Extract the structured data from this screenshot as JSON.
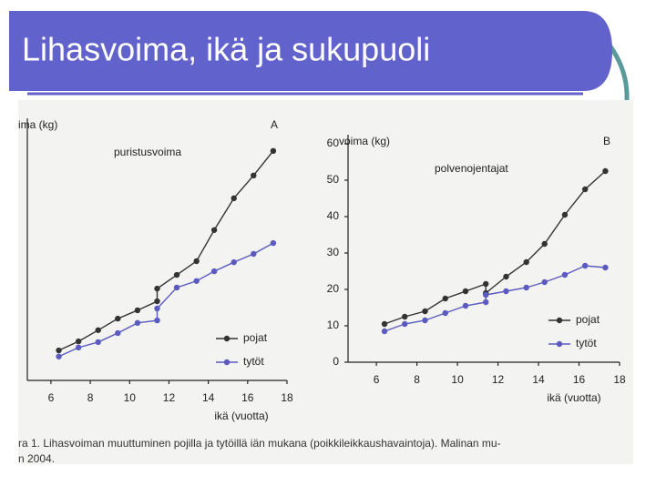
{
  "slide": {
    "title": "Lihasvoima, ikä ja sukupuoli",
    "caption": [
      "ra 1. Lihasvoiman muuttuminen pojilla ja tytöillä iän mukana (poikkileikkaushavaintoja). Malinan mu-",
      "n 2004."
    ]
  },
  "chart_data": [
    {
      "type": "line",
      "panel": "A",
      "annotation": "puristusvoima",
      "y_label": "ima (kg)",
      "x_label": "ikä (vuotta)",
      "x": [
        6.4,
        7.4,
        8.4,
        9.4,
        10.4,
        11.4,
        11.4,
        12.4,
        13.4,
        14.3,
        15.3,
        16.3,
        17.3
      ],
      "xlim": [
        4.8,
        18
      ],
      "xticks": [
        6,
        8,
        10,
        12,
        14,
        16,
        18
      ],
      "ylim": [
        0,
        70
      ],
      "legend": "lower right",
      "series": [
        {
          "name": "pojat",
          "color": "#333333",
          "values": [
            8.3,
            10.8,
            13.9,
            17.1,
            19.4,
            21.9,
            25.4,
            29.2,
            33,
            41.6,
            50.4,
            56.7,
            63.5
          ]
        },
        {
          "name": "tytöt",
          "color": "#5a5ac0",
          "values": [
            6.6,
            9.1,
            10.6,
            13.1,
            15.9,
            16.6,
            19.9,
            25.7,
            27.5,
            30.2,
            32.7,
            35,
            38
          ]
        }
      ]
    },
    {
      "type": "line",
      "panel": "B",
      "annotation": "polvenojentajat",
      "y_label": "voima (kg)",
      "x_label": "ikä (vuotta)",
      "x": [
        6.4,
        7.4,
        8.4,
        9.4,
        10.4,
        11.4,
        11.4,
        12.4,
        13.4,
        14.3,
        15.3,
        16.3,
        17.3
      ],
      "xlim": [
        4.6,
        18
      ],
      "xticks": [
        6,
        8,
        10,
        12,
        14,
        16,
        18
      ],
      "ylim": [
        0,
        60
      ],
      "yticks": [
        0,
        10,
        20,
        30,
        40,
        50,
        60
      ],
      "legend": "lower right",
      "series": [
        {
          "name": "pojat",
          "color": "#333333",
          "values": [
            10.5,
            12.5,
            14,
            17.5,
            19.5,
            21.5,
            19,
            23.5,
            27.5,
            32.5,
            40.5,
            47.5,
            52.5
          ]
        },
        {
          "name": "tytöt",
          "color": "#5a5ac0",
          "values": [
            8.5,
            10.5,
            11.5,
            13.5,
            15.5,
            16.5,
            18.5,
            19.5,
            20.5,
            22,
            24,
            26.5,
            26
          ]
        }
      ]
    }
  ]
}
